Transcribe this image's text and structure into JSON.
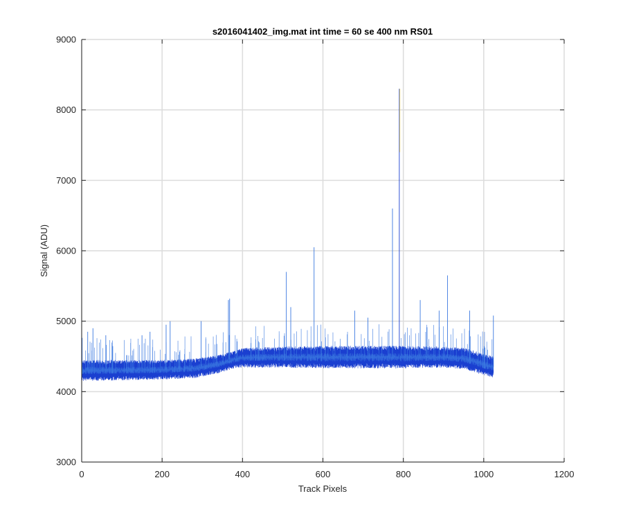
{
  "chart_data": {
    "type": "line",
    "title": "s2016041402_img.mat int time = 60 se  400 nm RS01",
    "xlabel": "Track Pixels",
    "ylabel": "Signal (ADU)",
    "xlim": [
      0,
      1200
    ],
    "ylim": [
      3000,
      9000
    ],
    "xticks": [
      "0",
      "200",
      "400",
      "600",
      "800",
      "1000",
      "1200"
    ],
    "yticks": [
      "3000",
      "4000",
      "5000",
      "6000",
      "7000",
      "8000",
      "9000"
    ],
    "grid": true,
    "series_colors": [
      "#1a3fd0",
      "#3a78e0",
      "#f2d34a"
    ],
    "baseline": {
      "x": [
        0,
        100,
        200,
        280,
        340,
        380,
        400,
        500,
        600,
        700,
        800,
        900,
        950,
        980,
        1000,
        1024
      ],
      "low": [
        4150,
        4160,
        4170,
        4190,
        4260,
        4330,
        4340,
        4340,
        4330,
        4330,
        4330,
        4340,
        4320,
        4270,
        4230,
        4200
      ],
      "high": [
        4450,
        4450,
        4450,
        4470,
        4520,
        4580,
        4620,
        4640,
        4650,
        4650,
        4650,
        4640,
        4620,
        4580,
        4530,
        4500
      ]
    },
    "spikes": [
      {
        "x": 15,
        "y": 4850
      },
      {
        "x": 28,
        "y": 4900
      },
      {
        "x": 60,
        "y": 4800
      },
      {
        "x": 150,
        "y": 4800
      },
      {
        "x": 170,
        "y": 4850
      },
      {
        "x": 210,
        "y": 4950
      },
      {
        "x": 220,
        "y": 5000
      },
      {
        "x": 297,
        "y": 5000
      },
      {
        "x": 365,
        "y": 5300
      },
      {
        "x": 368,
        "y": 5320
      },
      {
        "x": 509,
        "y": 5700
      },
      {
        "x": 520,
        "y": 5200
      },
      {
        "x": 578,
        "y": 6050
      },
      {
        "x": 679,
        "y": 5150
      },
      {
        "x": 712,
        "y": 5050
      },
      {
        "x": 773,
        "y": 6600
      },
      {
        "x": 790,
        "y": 8300
      },
      {
        "x": 842,
        "y": 5300
      },
      {
        "x": 889,
        "y": 5150
      },
      {
        "x": 910,
        "y": 5650
      },
      {
        "x": 965,
        "y": 5150
      },
      {
        "x": 1024,
        "y": 5080
      }
    ]
  }
}
